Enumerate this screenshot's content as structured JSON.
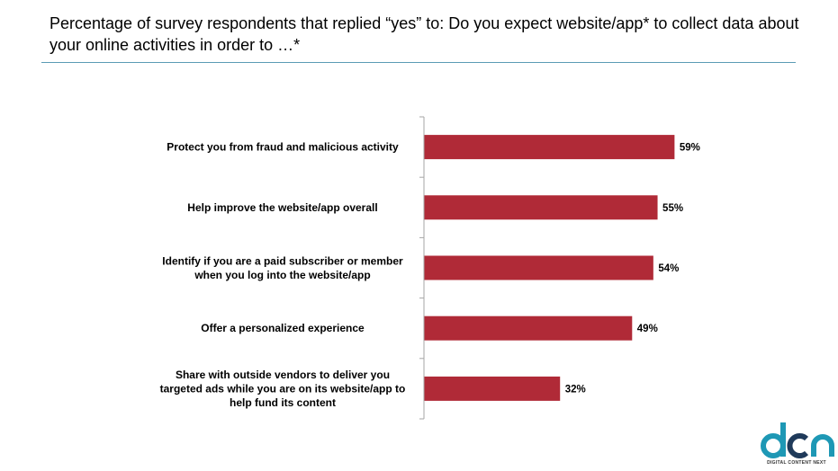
{
  "title": "Percentage of survey respondents that replied “yes” to: Do you expect website/app* to collect data about your online activities in order to …*",
  "chart_data": {
    "type": "bar",
    "orientation": "horizontal",
    "categories": [
      [
        "Protect you from fraud and malicious activity"
      ],
      [
        "Help improve the website/app overall"
      ],
      [
        "Identify if you are a paid subscriber or member",
        "when you log into the website/app"
      ],
      [
        "Offer a personalized experience"
      ],
      [
        "Share with outside vendors to deliver you",
        "targeted ads while you are on its website/app to",
        "help fund its content"
      ]
    ],
    "values": [
      59,
      55,
      54,
      49,
      32
    ],
    "value_labels": [
      "59%",
      "55%",
      "54%",
      "49%",
      "32%"
    ],
    "xlim": [
      0,
      100
    ],
    "grid": false,
    "legend": "none",
    "bar_color": "#b02a37"
  },
  "logo": {
    "text": "dcn",
    "caption": "DIGITAL CONTENT NEXT",
    "colors": [
      "#1e98b5",
      "#1f3a5a"
    ]
  }
}
